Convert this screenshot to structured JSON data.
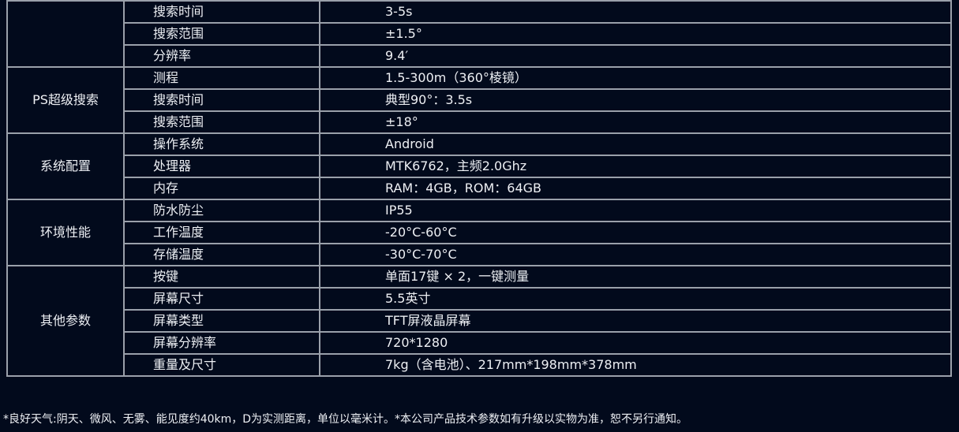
{
  "groups": [
    {
      "name": "",
      "rows": [
        [
          "搜索时间",
          "3-5s"
        ],
        [
          "搜索范围",
          "±1.5°"
        ],
        [
          "分辨率",
          "9.4′"
        ]
      ]
    },
    {
      "name": "PS超级搜索",
      "rows": [
        [
          "测程",
          "1.5-300m（360°棱镜）"
        ],
        [
          "搜索时间",
          "典型90°：3.5s"
        ],
        [
          "搜索范围",
          "±18°"
        ]
      ]
    },
    {
      "name": "系统配置",
      "rows": [
        [
          "操作系统",
          "Android"
        ],
        [
          "处理器",
          "MTK6762，主频2.0Ghz"
        ],
        [
          "内存",
          "RAM：4GB，ROM：64GB"
        ]
      ]
    },
    {
      "name": "环境性能",
      "rows": [
        [
          "防水防尘",
          "IP55"
        ],
        [
          "工作温度",
          "-20°C-60°C"
        ],
        [
          "存储温度",
          "-30°C-70°C"
        ]
      ]
    },
    {
      "name": "其他参数",
      "rows": [
        [
          "按键",
          "单面17键 × 2，一键测量"
        ],
        [
          "屏幕尺寸",
          "5.5英寸"
        ],
        [
          "屏幕类型",
          "TFT屏液晶屏幕"
        ],
        [
          "屏幕分辨率",
          "720*1280"
        ],
        [
          "重量及尺寸",
          "7kg（含电池）、217mm*198mm*378mm"
        ]
      ]
    }
  ],
  "footnote": "*良好天气:阴天、微风、无雾、能见度约40km，D为实测距离，单位以毫米计。*本公司产品技术参数如有升级以实物为准，恕不另行通知。"
}
